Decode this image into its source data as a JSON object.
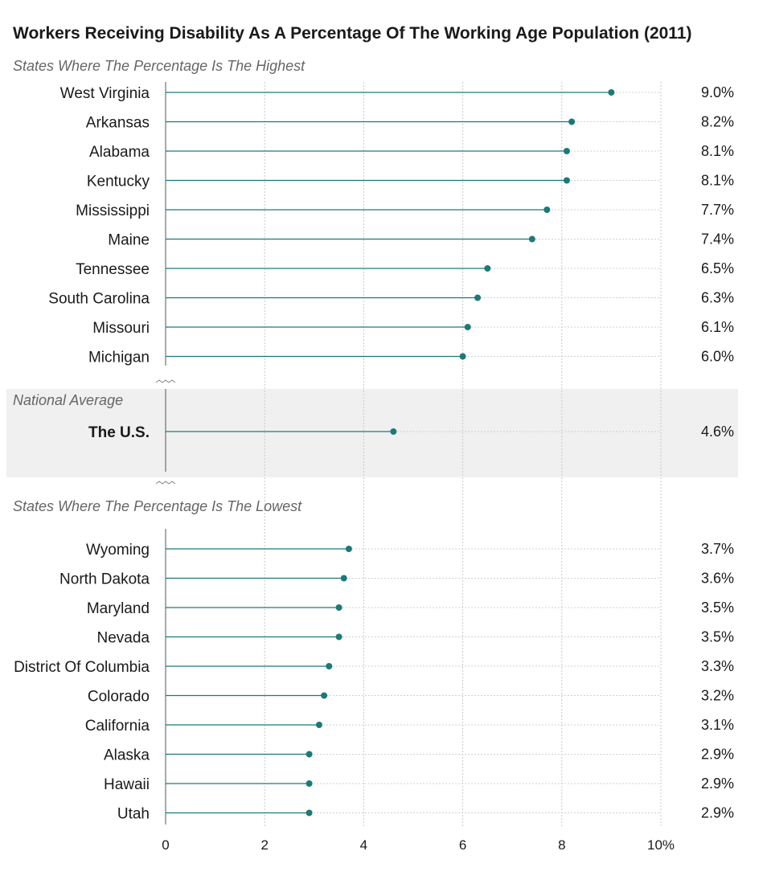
{
  "chart_data": {
    "type": "lollipop",
    "title": "Workers Receiving Disability As A Percentage Of The Working Age Population (2011)",
    "xlim": [
      0,
      10
    ],
    "x_ticks": [
      "0",
      "2",
      "4",
      "6",
      "8",
      "10%"
    ],
    "grid": true,
    "colors": {
      "series": "#1b7a78",
      "band": "#f0f0f0"
    },
    "sections": [
      {
        "label": "States Where The Percentage Is The Highest",
        "rows": [
          {
            "name": "West Virginia",
            "value": 9.0,
            "label": "9.0%"
          },
          {
            "name": "Arkansas",
            "value": 8.2,
            "label": "8.2%"
          },
          {
            "name": "Alabama",
            "value": 8.1,
            "label": "8.1%"
          },
          {
            "name": "Kentucky",
            "value": 8.1,
            "label": "8.1%"
          },
          {
            "name": "Mississippi",
            "value": 7.7,
            "label": "7.7%"
          },
          {
            "name": "Maine",
            "value": 7.4,
            "label": "7.4%"
          },
          {
            "name": "Tennessee",
            "value": 6.5,
            "label": "6.5%"
          },
          {
            "name": "South Carolina",
            "value": 6.3,
            "label": "6.3%"
          },
          {
            "name": "Missouri",
            "value": 6.1,
            "label": "6.1%"
          },
          {
            "name": "Michigan",
            "value": 6.0,
            "label": "6.0%"
          }
        ]
      },
      {
        "label": "National Average",
        "highlighted": true,
        "rows": [
          {
            "name": "The U.S.",
            "value": 4.6,
            "label": "4.6%",
            "bold": true
          }
        ]
      },
      {
        "label": "States Where The Percentage Is The Lowest",
        "rows": [
          {
            "name": "Wyoming",
            "value": 3.7,
            "label": "3.7%"
          },
          {
            "name": "North Dakota",
            "value": 3.6,
            "label": "3.6%"
          },
          {
            "name": "Maryland",
            "value": 3.5,
            "label": "3.5%"
          },
          {
            "name": "Nevada",
            "value": 3.5,
            "label": "3.5%"
          },
          {
            "name": "District Of Columbia",
            "value": 3.3,
            "label": "3.3%"
          },
          {
            "name": "Colorado",
            "value": 3.2,
            "label": "3.2%"
          },
          {
            "name": "California",
            "value": 3.1,
            "label": "3.1%"
          },
          {
            "name": "Alaska",
            "value": 2.9,
            "label": "2.9%"
          },
          {
            "name": "Hawaii",
            "value": 2.9,
            "label": "2.9%"
          },
          {
            "name": "Utah",
            "value": 2.9,
            "label": "2.9%"
          }
        ]
      }
    ]
  }
}
